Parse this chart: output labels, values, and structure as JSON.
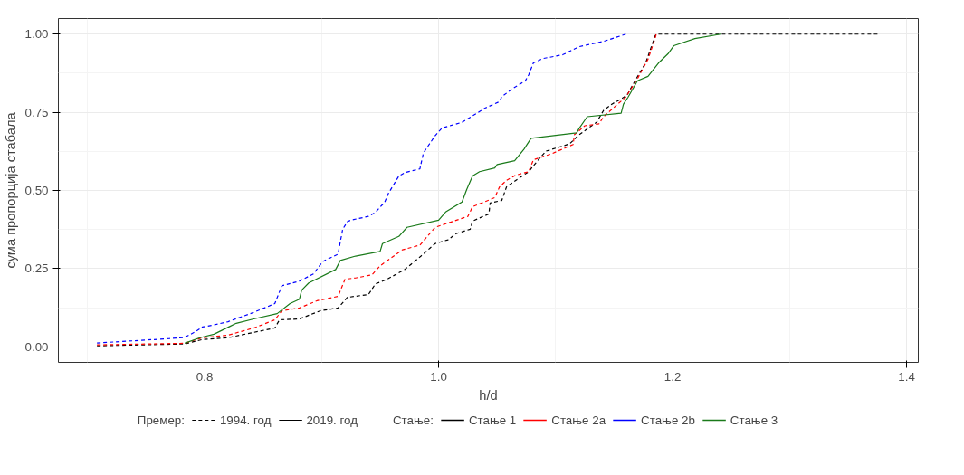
{
  "chart_data": {
    "type": "line",
    "xlabel": "h/d",
    "ylabel": "сума пропорција стабала",
    "legend_title": "Стање:",
    "legend": "bottom",
    "grid": true,
    "xlim": [
      0.675,
      1.41
    ],
    "ylim": [
      -0.05,
      1.05
    ],
    "xticks": [
      {
        "value": 0.8,
        "label": "0.8"
      },
      {
        "value": 1.0,
        "label": "1.0"
      },
      {
        "value": 1.2,
        "label": "1.2"
      },
      {
        "value": 1.4,
        "label": "1.4"
      }
    ],
    "yticks": [
      {
        "value": 0,
        "label": "0.00"
      },
      {
        "value": 0.25,
        "label": "0.25"
      },
      {
        "value": 0.5,
        "label": "0.50"
      },
      {
        "value": 0.75,
        "label": "0.75"
      },
      {
        "value": 1,
        "label": "1.00"
      }
    ],
    "annotations": [
      "Премер:",
      "1994. год",
      "2019. год"
    ],
    "series": [
      {
        "name": "Стање 1",
        "color": "#000000",
        "line_style": "dashed",
        "x": [
          0.708,
          0.783,
          0.798,
          0.82,
          0.842,
          0.86,
          0.864,
          0.881,
          0.899,
          0.914,
          0.922,
          0.94,
          0.946,
          0.956,
          0.971,
          0.984,
          0.997,
          1.008,
          1.015,
          1.027,
          1.029,
          1.043,
          1.044,
          1.054,
          1.058,
          1.069,
          1.077,
          1.087,
          1.092,
          1.112,
          1.12,
          1.135,
          1.141,
          1.148,
          1.156,
          1.161,
          1.171,
          1.177,
          1.185,
          1.186,
          1.376
        ],
        "values": [
          0.003,
          0.009,
          0.023,
          0.029,
          0.046,
          0.06,
          0.086,
          0.089,
          0.115,
          0.124,
          0.158,
          0.167,
          0.201,
          0.216,
          0.247,
          0.287,
          0.33,
          0.342,
          0.362,
          0.376,
          0.402,
          0.425,
          0.46,
          0.468,
          0.511,
          0.54,
          0.56,
          0.606,
          0.626,
          0.649,
          0.678,
          0.718,
          0.756,
          0.776,
          0.793,
          0.805,
          0.871,
          0.908,
          0.994,
          1.0,
          1.0
        ]
      },
      {
        "name": "Стање 2a",
        "color": "#ff0000",
        "line_style": "dashed",
        "x": [
          0.708,
          0.783,
          0.798,
          0.82,
          0.842,
          0.86,
          0.866,
          0.881,
          0.896,
          0.914,
          0.92,
          0.929,
          0.943,
          0.95,
          0.969,
          0.984,
          0.997,
          1.025,
          1.029,
          1.048,
          1.052,
          1.058,
          1.066,
          1.077,
          1.081,
          1.097,
          1.115,
          1.116,
          1.125,
          1.137,
          1.141,
          1.16,
          1.169,
          1.179,
          1.185,
          1.186
        ],
        "values": [
          0.006,
          0.011,
          0.029,
          0.037,
          0.06,
          0.086,
          0.115,
          0.124,
          0.147,
          0.161,
          0.216,
          0.22,
          0.23,
          0.259,
          0.31,
          0.325,
          0.382,
          0.417,
          0.448,
          0.477,
          0.511,
          0.532,
          0.549,
          0.56,
          0.598,
          0.618,
          0.647,
          0.678,
          0.707,
          0.713,
          0.736,
          0.799,
          0.851,
          0.92,
          0.986,
          1.0
        ]
      },
      {
        "name": "Стање 2b",
        "color": "#0000ff",
        "line_style": "dashed",
        "x": [
          0.708,
          0.77,
          0.783,
          0.793,
          0.798,
          0.808,
          0.82,
          0.842,
          0.86,
          0.866,
          0.881,
          0.893,
          0.901,
          0.914,
          0.918,
          0.922,
          0.925,
          0.94,
          0.946,
          0.954,
          0.957,
          0.966,
          0.971,
          0.984,
          0.987,
          0.997,
          1.003,
          1.02,
          1.03,
          1.04,
          1.052,
          1.054,
          1.064,
          1.074,
          1.077,
          1.081,
          1.089,
          1.106,
          1.12,
          1.141,
          1.16
        ],
        "values": [
          0.012,
          0.026,
          0.03,
          0.05,
          0.063,
          0.07,
          0.08,
          0.11,
          0.138,
          0.195,
          0.21,
          0.233,
          0.273,
          0.296,
          0.376,
          0.4,
          0.405,
          0.417,
          0.43,
          0.463,
          0.49,
          0.546,
          0.557,
          0.569,
          0.62,
          0.675,
          0.7,
          0.718,
          0.741,
          0.764,
          0.784,
          0.8,
          0.828,
          0.85,
          0.87,
          0.908,
          0.922,
          0.934,
          0.96,
          0.977,
          1.0
        ]
      },
      {
        "name": "Стање 3",
        "color": "#1a7a1a",
        "line_style": "solid",
        "x": [
          0.783,
          0.796,
          0.808,
          0.827,
          0.842,
          0.862,
          0.873,
          0.881,
          0.883,
          0.889,
          0.912,
          0.916,
          0.929,
          0.95,
          0.952,
          0.966,
          0.973,
          1.0,
          1.006,
          1.02,
          1.024,
          1.029,
          1.035,
          1.048,
          1.05,
          1.065,
          1.073,
          1.079,
          1.118,
          1.12,
          1.127,
          1.156,
          1.158,
          1.162,
          1.17,
          1.179,
          1.188,
          1.196,
          1.201,
          1.219,
          1.241
        ],
        "values": [
          0.011,
          0.029,
          0.04,
          0.075,
          0.089,
          0.106,
          0.138,
          0.152,
          0.181,
          0.204,
          0.247,
          0.276,
          0.29,
          0.305,
          0.33,
          0.353,
          0.382,
          0.405,
          0.431,
          0.463,
          0.503,
          0.546,
          0.56,
          0.572,
          0.583,
          0.595,
          0.632,
          0.667,
          0.684,
          0.698,
          0.736,
          0.747,
          0.776,
          0.799,
          0.851,
          0.865,
          0.908,
          0.937,
          0.963,
          0.986,
          1.0
        ]
      }
    ]
  }
}
